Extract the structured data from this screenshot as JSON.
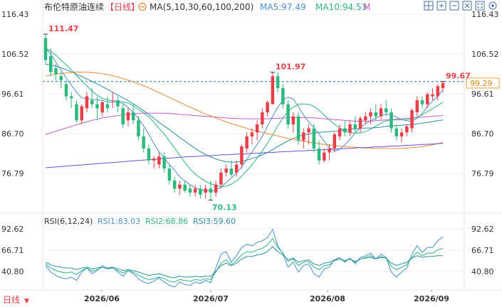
{
  "header": {
    "title": "布伦特原油连续",
    "period_tag": "【日线】",
    "ma_label": "MA(5,10,30,60,100,200)",
    "ma5_label": "MA5:97.49",
    "ma10_label": "MA10:94.53",
    "m_label": "M",
    "colors": {
      "ma5": "#4a90d9",
      "ma10": "#2db87d",
      "m": "#c45bd1"
    }
  },
  "toolbar": {
    "icons": [
      "grid-icon",
      "zoom-in-icon",
      "zoom-out-icon",
      "close-icon",
      "fullscreen-icon",
      "settings-icon"
    ]
  },
  "price_axis": {
    "ticks": [
      "116.43",
      "106.52",
      "96.61",
      "86.70",
      "76.79"
    ],
    "current_price_badge": "99.29"
  },
  "rsi_panel": {
    "label": "RSI(6,12,24)",
    "rsi1_label": "RSI1:83.03",
    "rsi2_label": "RSI2:68.86",
    "rsi3_label": "RSI3:59.60",
    "ticks": [
      "92.62",
      "66.71",
      "40.80"
    ],
    "colors": {
      "rsi1": "#4a90d9",
      "rsi2": "#2db87d",
      "rsi3": "#2b8fa8"
    }
  },
  "x_axis": {
    "ticks": [
      "2026/06",
      "2026/07",
      "2026/08",
      "2026/09"
    ]
  },
  "footer": {
    "period_button": "日线",
    "chevron": "▼"
  },
  "chart_data": {
    "type": "candlestick",
    "title": "布伦特原油连续",
    "ylim": [
      70,
      118
    ],
    "up_color": "#e8404a",
    "down_color": "#2db87d",
    "annotations": [
      {
        "label": "111.47",
        "index": 0
      },
      {
        "label": "101.97",
        "index": 44
      },
      {
        "label": "70.13",
        "index": 32
      },
      {
        "label": "99.67",
        "index": 77
      }
    ],
    "candles": [
      [
        110.5,
        111.47,
        104,
        105
      ],
      [
        106,
        108,
        101,
        102
      ],
      [
        103,
        104,
        100,
        101.5
      ],
      [
        101,
        102,
        98,
        100
      ],
      [
        99,
        100,
        95,
        96
      ],
      [
        96,
        97,
        93,
        95.5
      ],
      [
        94,
        95,
        89.5,
        90
      ],
      [
        90,
        94,
        89,
        93.5
      ],
      [
        93,
        97,
        92,
        96
      ],
      [
        95,
        98,
        93,
        94
      ],
      [
        94,
        96,
        90,
        93
      ],
      [
        92,
        95,
        91,
        94.5
      ],
      [
        94,
        96,
        92,
        93
      ],
      [
        95,
        97,
        93,
        95
      ],
      [
        95,
        96,
        92,
        93.5
      ],
      [
        93,
        94,
        88,
        89
      ],
      [
        90,
        93,
        88.5,
        92
      ],
      [
        92,
        94,
        89,
        90
      ],
      [
        90,
        91,
        85,
        86
      ],
      [
        86,
        88,
        82,
        83
      ],
      [
        83,
        84,
        79,
        80
      ],
      [
        80,
        81,
        78,
        80.5
      ],
      [
        79,
        82,
        78,
        81
      ],
      [
        81,
        82,
        77,
        78
      ],
      [
        78,
        79,
        74,
        75
      ],
      [
        75,
        76,
        72,
        73
      ],
      [
        73,
        75,
        71.5,
        74
      ],
      [
        74,
        75,
        72,
        72.5
      ],
      [
        73,
        74,
        71,
        72
      ],
      [
        72,
        74,
        71,
        73
      ],
      [
        73,
        74,
        70.5,
        71.5
      ],
      [
        72,
        74,
        70.5,
        73
      ],
      [
        73,
        75,
        70.13,
        72
      ],
      [
        72,
        75,
        71,
        74
      ],
      [
        74,
        78,
        73,
        77
      ],
      [
        77,
        79,
        76,
        78
      ],
      [
        78,
        80,
        76,
        76.5
      ],
      [
        77,
        80,
        76,
        79
      ],
      [
        79,
        84,
        78,
        83.5
      ],
      [
        83,
        87,
        82,
        86
      ],
      [
        86,
        88,
        84,
        87
      ],
      [
        87,
        90,
        85,
        89
      ],
      [
        89,
        93,
        88,
        92
      ],
      [
        92,
        95,
        91,
        94.5
      ],
      [
        94,
        101.97,
        94,
        101
      ],
      [
        101,
        102,
        97,
        98
      ],
      [
        98,
        99,
        93,
        94
      ],
      [
        94,
        95,
        88,
        89
      ],
      [
        89,
        92,
        87,
        91
      ],
      [
        91,
        92,
        84,
        85
      ],
      [
        85,
        88,
        83,
        87
      ],
      [
        87,
        89,
        84,
        88
      ],
      [
        88,
        89,
        82,
        83
      ],
      [
        83,
        85,
        79,
        80
      ],
      [
        80,
        83,
        79.5,
        82
      ],
      [
        82,
        84,
        80,
        83
      ],
      [
        83,
        87,
        82,
        86.5
      ],
      [
        86,
        89,
        85,
        88
      ],
      [
        88,
        90,
        86,
        87
      ],
      [
        87,
        90,
        86,
        89
      ],
      [
        89,
        91,
        87,
        88
      ],
      [
        88,
        91,
        87,
        90.5
      ],
      [
        90,
        92,
        89,
        91
      ],
      [
        91,
        93,
        89,
        92
      ],
      [
        92,
        94,
        90,
        91
      ],
      [
        91,
        94,
        90,
        93
      ],
      [
        93,
        95,
        91,
        92
      ],
      [
        92,
        93,
        87,
        88
      ],
      [
        88,
        89,
        85,
        86
      ],
      [
        86,
        88,
        84.5,
        87
      ],
      [
        87,
        89,
        86,
        88.5
      ],
      [
        88,
        93,
        87,
        92.5
      ],
      [
        92,
        96,
        91,
        95
      ],
      [
        95,
        96,
        93,
        94
      ],
      [
        94,
        97,
        93,
        96.5
      ],
      [
        96,
        98,
        95,
        96.5
      ],
      [
        96,
        99,
        95,
        98.5
      ],
      [
        98,
        99.67,
        97,
        99.29
      ]
    ],
    "ma_lines": [
      {
        "name": "MA5",
        "color": "#4a90d9",
        "values": [
          108,
          106.5,
          104.5,
          102.5,
          100.5,
          98.8,
          97,
          95.6,
          95.4,
          95.2,
          95.1,
          95,
          94.6,
          94.5,
          94.6,
          94.2,
          93.2,
          92,
          90.5,
          88.6,
          86.6,
          84.2,
          82.2,
          80.6,
          79,
          77.6,
          76,
          74.9,
          74,
          73.2,
          72.7,
          72.6,
          72.4,
          72.6,
          73.4,
          74.5,
          75.7,
          76.9,
          78.4,
          80.3,
          82.1,
          84,
          86,
          88.5,
          91,
          93.3,
          95,
          95.8,
          95.3,
          93.4,
          91.3,
          89.6,
          88.2,
          86.6,
          84.8,
          83.2,
          82.3,
          82.8,
          83.9,
          85.3,
          86.8,
          88.3,
          89.2,
          89.9,
          90.5,
          91.2,
          91.5,
          91.4,
          90.8,
          90.2,
          89.9,
          89.8,
          90.5,
          91.7,
          93.5,
          94.8,
          96,
          97.49
        ]
      },
      {
        "name": "MA10",
        "color": "#2db87d",
        "values": [
          108,
          107.2,
          106.2,
          105,
          103.8,
          102.6,
          101.2,
          99.9,
          98.6,
          97.3,
          96.3,
          95.5,
          95.1,
          94.9,
          94.8,
          94.6,
          94.3,
          93.6,
          92.7,
          91.9,
          90.9,
          89.5,
          88,
          86.6,
          84.9,
          83.1,
          81.3,
          79.5,
          77.9,
          76.6,
          75.6,
          74.8,
          74.2,
          73.8,
          73.5,
          73.6,
          74.1,
          74.9,
          76.1,
          77.5,
          78.9,
          80.6,
          82.4,
          84.3,
          86.4,
          88.6,
          90.6,
          92.3,
          93.3,
          94,
          94.1,
          94,
          93.5,
          92.5,
          91.3,
          90.1,
          89,
          88.1,
          87.5,
          86.9,
          86.8,
          86.9,
          87.2,
          87.8,
          88.6,
          89.3,
          89.9,
          90.1,
          90.1,
          90.1,
          90.2,
          90.4,
          90.8,
          91.4,
          92.2,
          92.9,
          93.7,
          94.53
        ]
      },
      {
        "name": "MA30",
        "color": "#2b8fa8",
        "values": [
          104,
          103.8,
          103.5,
          103.1,
          102.6,
          102.1,
          101.5,
          100.9,
          100.3,
          99.7,
          99.1,
          98.4,
          97.7,
          97,
          96.3,
          95.6,
          94.9,
          94.1,
          93.3,
          92.4,
          91.5,
          90.5,
          89.5,
          88.6,
          87.7,
          86.7,
          85.7,
          84.8,
          83.9,
          83,
          82.2,
          81.5,
          80.9,
          80.4,
          80,
          79.7,
          79.6,
          79.6,
          79.8,
          80.1,
          80.5,
          80.9,
          81.4,
          82,
          82.7,
          83.5,
          84.2,
          84.9,
          85.5,
          86,
          86.4,
          86.6,
          86.8,
          87,
          87.1,
          87.2,
          87.3,
          87.4,
          87.6,
          87.8,
          87.9,
          88,
          88.1,
          88.1,
          88.2,
          88.3,
          88.5,
          88.6,
          88.7,
          88.8,
          88.9,
          89,
          89.1,
          89.3,
          89.5,
          89.7,
          89.9,
          90.1
        ]
      },
      {
        "name": "MA60",
        "color": "#c45bd1",
        "values": [
          86.5,
          86.9,
          87.3,
          87.7,
          88.1,
          88.5,
          88.9,
          89.3,
          89.6,
          90,
          90.3,
          90.6,
          90.8,
          91,
          91.2,
          91.4,
          91.5,
          91.6,
          91.7,
          91.8,
          91.8,
          91.8,
          91.8,
          91.8,
          91.7,
          91.6,
          91.5,
          91.4,
          91.3,
          91.2,
          91.1,
          91,
          90.9,
          90.8,
          90.7,
          90.6,
          90.5,
          90.5,
          90.4,
          90.4,
          90.4,
          90.4,
          90.4,
          90.4,
          90.5,
          90.5,
          90.6,
          90.6,
          90.7,
          90.7,
          90.7,
          90.7,
          90.6,
          90.5,
          90.4,
          90.3,
          90.2,
          90.1,
          90,
          89.9,
          89.8,
          89.8,
          89.8,
          89.8,
          89.9,
          90,
          90.1,
          90.2,
          90.3,
          90.4,
          90.5,
          90.6,
          90.7,
          90.8,
          90.9,
          91,
          91.1,
          91.2
        ]
      },
      {
        "name": "MA100",
        "color": "#e88a3a",
        "values": [
          101,
          101.3,
          101.5,
          101.7,
          101.8,
          101.9,
          102,
          102,
          102,
          101.9,
          101.8,
          101.6,
          101.4,
          101.1,
          100.8,
          100.4,
          100,
          99.6,
          99.1,
          98.6,
          98.1,
          97.5,
          96.9,
          96.3,
          95.7,
          95.1,
          94.5,
          93.9,
          93.3,
          92.7,
          92.1,
          91.6,
          91.1,
          90.6,
          90.1,
          89.6,
          89.2,
          88.8,
          88.4,
          88,
          87.6,
          87.3,
          87,
          86.7,
          86.4,
          86.1,
          85.8,
          85.5,
          85.3,
          85,
          84.8,
          84.6,
          84.4,
          84.2,
          84,
          83.9,
          83.7,
          83.6,
          83.5,
          83.4,
          83.3,
          83.2,
          83.1,
          83.1,
          83,
          83,
          83,
          83,
          83,
          83,
          83.1,
          83.2,
          83.3,
          83.5,
          83.7,
          83.9,
          84.2,
          84.5
        ]
      },
      {
        "name": "MA200",
        "color": "#6b4fd1",
        "values": [
          78.2,
          78.3,
          78.4,
          78.5,
          78.6,
          78.7,
          78.8,
          78.9,
          79,
          79.1,
          79.2,
          79.3,
          79.4,
          79.5,
          79.6,
          79.7,
          79.8,
          79.9,
          80,
          80.1,
          80.2,
          80.3,
          80.4,
          80.5,
          80.6,
          80.7,
          80.8,
          80.9,
          81,
          81,
          81.1,
          81.2,
          81.2,
          81.3,
          81.4,
          81.4,
          81.5,
          81.6,
          81.6,
          81.7,
          81.8,
          81.8,
          81.9,
          82,
          82,
          82.1,
          82.2,
          82.2,
          82.3,
          82.4,
          82.4,
          82.5,
          82.6,
          82.6,
          82.7,
          82.8,
          82.8,
          82.9,
          83,
          83,
          83.1,
          83.2,
          83.2,
          83.3,
          83.4,
          83.4,
          83.5,
          83.6,
          83.6,
          83.7,
          83.8,
          83.8,
          83.9,
          84,
          84,
          84.1,
          84.2,
          84.3
        ]
      }
    ],
    "rsi": {
      "ylim": [
        25,
        100
      ],
      "series": [
        {
          "name": "RSI1",
          "color": "#4a90d9",
          "values": [
            48,
            40,
            36,
            33,
            32,
            34,
            30,
            40,
            45,
            38,
            42,
            48,
            44,
            46,
            40,
            35,
            42,
            38,
            32,
            28,
            26,
            29,
            33,
            28,
            24,
            22,
            28,
            25,
            24,
            28,
            26,
            30,
            27,
            45,
            62,
            65,
            52,
            60,
            70,
            74,
            72,
            76,
            78,
            82,
            92,
            72,
            62,
            46,
            52,
            40,
            48,
            50,
            38,
            34,
            44,
            46,
            55,
            58,
            52,
            57,
            50,
            58,
            60,
            63,
            56,
            62,
            58,
            40,
            34,
            40,
            45,
            62,
            72,
            64,
            70,
            70,
            78,
            83
          ]
        },
        {
          "name": "RSI2",
          "color": "#2db87d",
          "values": [
            50,
            45,
            42,
            40,
            39,
            40,
            37,
            42,
            45,
            41,
            43,
            46,
            44,
            45,
            42,
            39,
            42,
            40,
            36,
            33,
            31,
            32,
            34,
            32,
            29,
            28,
            31,
            30,
            29,
            31,
            30,
            32,
            31,
            40,
            51,
            55,
            49,
            54,
            61,
            65,
            64,
            67,
            69,
            73,
            81,
            70,
            63,
            53,
            56,
            48,
            52,
            53,
            46,
            43,
            48,
            49,
            54,
            56,
            53,
            56,
            52,
            56,
            58,
            60,
            56,
            59,
            57,
            47,
            43,
            46,
            49,
            58,
            64,
            60,
            63,
            63,
            67,
            69
          ]
        },
        {
          "name": "RSI3",
          "color": "#2b8fa8",
          "values": [
            52,
            49,
            47,
            46,
            45,
            45,
            43,
            45,
            46,
            44,
            45,
            46,
            45,
            46,
            44,
            42,
            43,
            42,
            40,
            38,
            36,
            37,
            38,
            36,
            34,
            33,
            35,
            34,
            34,
            35,
            34,
            35,
            35,
            41,
            48,
            51,
            48,
            51,
            56,
            59,
            59,
            61,
            62,
            65,
            71,
            65,
            61,
            55,
            57,
            52,
            54,
            55,
            50,
            48,
            51,
            52,
            55,
            56,
            54,
            56,
            53,
            56,
            57,
            58,
            56,
            58,
            57,
            51,
            48,
            50,
            52,
            57,
            60,
            58,
            59,
            59,
            60,
            60
          ]
        }
      ]
    }
  }
}
